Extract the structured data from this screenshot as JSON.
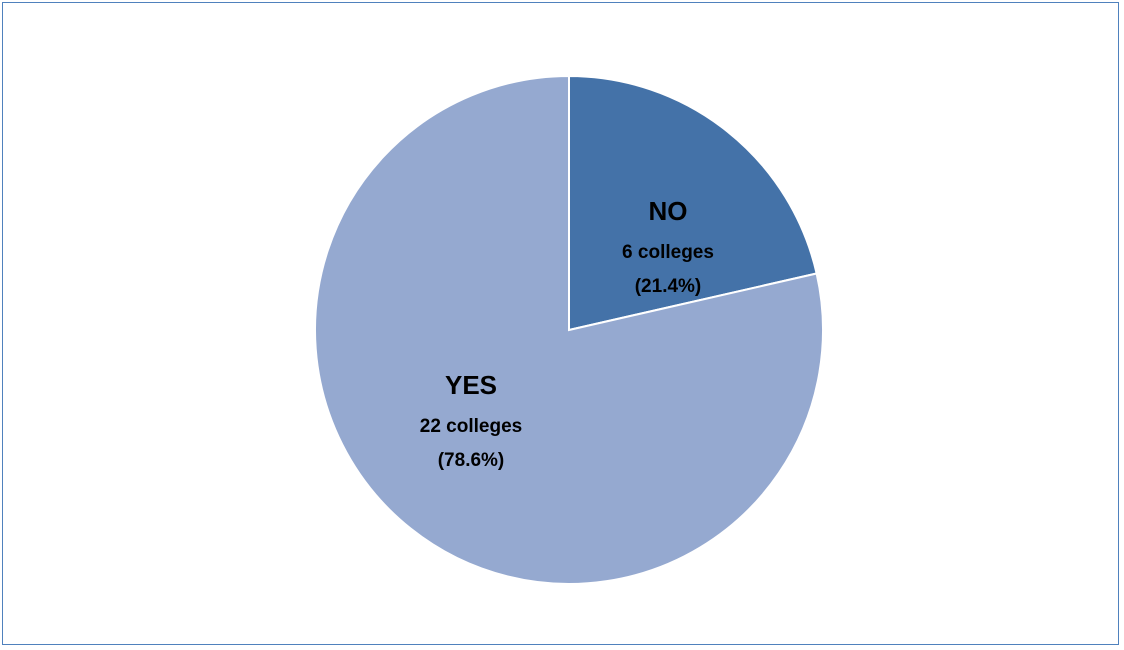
{
  "chart_data": {
    "type": "pie",
    "title": "",
    "slices": [
      {
        "name": "NO",
        "value": 6,
        "count_label": "6 colleges",
        "percent_label": "(21.4%)",
        "color": "#4472a8"
      },
      {
        "name": "YES",
        "value": 22,
        "count_label": "22 colleges",
        "percent_label": "(78.6%)",
        "color": "#95a9d0"
      }
    ],
    "start": "12 o'clock",
    "direction": "clockwise",
    "legend": "none",
    "border_color": "#4f81bd"
  }
}
